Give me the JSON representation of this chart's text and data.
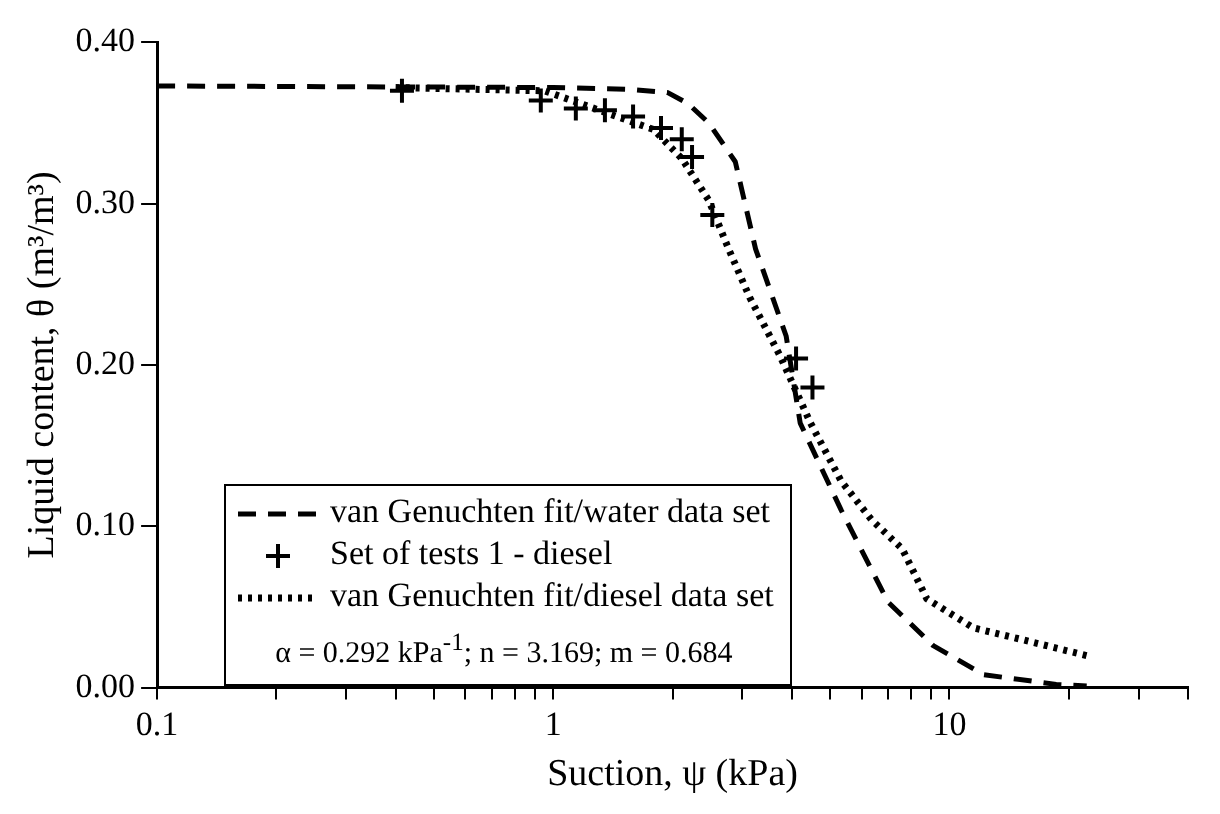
{
  "chart_data": {
    "type": "line",
    "xlabel": "Suction, ψ (kPa)",
    "ylabel": "Liquid content, θ (m³/m³)",
    "log": "x",
    "xlim": [
      0.1,
      40
    ],
    "xticks": [
      0.1,
      {
        "value": 0.2,
        "label": null
      },
      {
        "value": 0.3,
        "label": null
      },
      {
        "value": 0.4,
        "label": null
      },
      {
        "value": 0.5,
        "label": null
      },
      {
        "value": 0.6,
        "label": null
      },
      {
        "value": 0.7,
        "label": null
      },
      {
        "value": 0.8,
        "label": null
      },
      {
        "value": 0.9,
        "label": null
      },
      1,
      {
        "value": 2,
        "label": null
      },
      {
        "value": 3,
        "label": null
      },
      {
        "value": 4,
        "label": null
      },
      {
        "value": 5,
        "label": null
      },
      {
        "value": 6,
        "label": null
      },
      {
        "value": 7,
        "label": null
      },
      {
        "value": 8,
        "label": null
      },
      {
        "value": 9,
        "label": null
      },
      10,
      {
        "value": 20,
        "label": null
      },
      {
        "value": 30,
        "label": null
      },
      {
        "value": 40,
        "label": null
      }
    ],
    "ylim": [
      0,
      0.4
    ],
    "yticks": [
      {
        "value": 0,
        "label": "0.00"
      },
      {
        "value": 0.1,
        "label": "0.10"
      },
      {
        "value": 0.2,
        "label": "0.20"
      },
      {
        "value": 0.3,
        "label": "0.30"
      },
      {
        "value": 0.4,
        "label": "0.40"
      }
    ],
    "grid": false,
    "legend": "bottom left",
    "series": [
      {
        "name": "van Genuchten fit/water data set",
        "line_style": "dashed",
        "marker": "none",
        "color": "#000000",
        "x": [
          0.1,
          1,
          1.53,
          1.94,
          2.19,
          2.47,
          2.88,
          3.24,
          3.87,
          4.2,
          5.33,
          7.0,
          9.1,
          12.2,
          18.6,
          22.2
        ],
        "values": [
          0.373,
          0.372,
          0.371,
          0.369,
          0.362,
          0.35,
          0.326,
          0.272,
          0.218,
          0.164,
          0.11,
          0.053,
          0.026,
          0.008,
          0.002,
          0.001
        ]
      },
      {
        "name": "Set of tests 1 - diesel",
        "type": "scatter",
        "marker": "cross",
        "color": "#000000",
        "x": [
          0.415,
          0.93,
          1.14,
          1.35,
          1.59,
          1.87,
          2.11,
          2.24,
          2.52,
          4.1,
          4.51
        ],
        "values": [
          0.37,
          0.364,
          0.359,
          0.358,
          0.354,
          0.347,
          0.34,
          0.329,
          0.293,
          0.204,
          0.186
        ]
      },
      {
        "name": "van Genuchten fit/diesel data set",
        "line_style": "dotted",
        "marker": "none",
        "color": "#000000",
        "x": [
          0.4,
          0.95,
          1.79,
          2.11,
          2.47,
          2.77,
          3.13,
          3.73,
          4.46,
          5.33,
          6.36,
          7.6,
          8.77,
          11.5,
          15.1,
          22.9
        ],
        "values": [
          0.372,
          0.37,
          0.346,
          0.328,
          0.302,
          0.272,
          0.242,
          0.206,
          0.164,
          0.128,
          0.104,
          0.086,
          0.055,
          0.037,
          0.03,
          0.019
        ]
      }
    ],
    "annotations": [
      "α = 0.292 kPa$^{-1}$; n = 3.169; m = 0.684"
    ]
  }
}
